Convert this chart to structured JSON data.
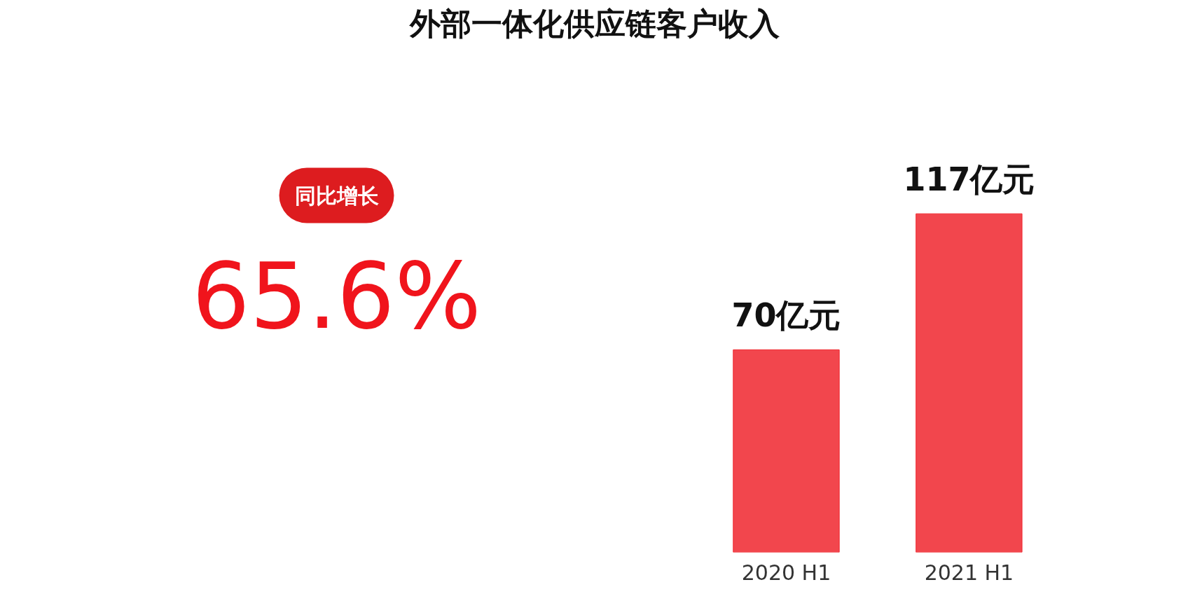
{
  "chart_data": {
    "type": "bar",
    "title": "外部一体化供应链客户收入",
    "categories": [
      "2020 H1",
      "2021 H1"
    ],
    "values": [
      70,
      117
    ],
    "value_labels": [
      "70亿元",
      "117亿元"
    ],
    "color": "#f0262e",
    "tick_labels": "x",
    "grid": false,
    "annotations": [
      "同比增长",
      "65.6%"
    ]
  }
}
